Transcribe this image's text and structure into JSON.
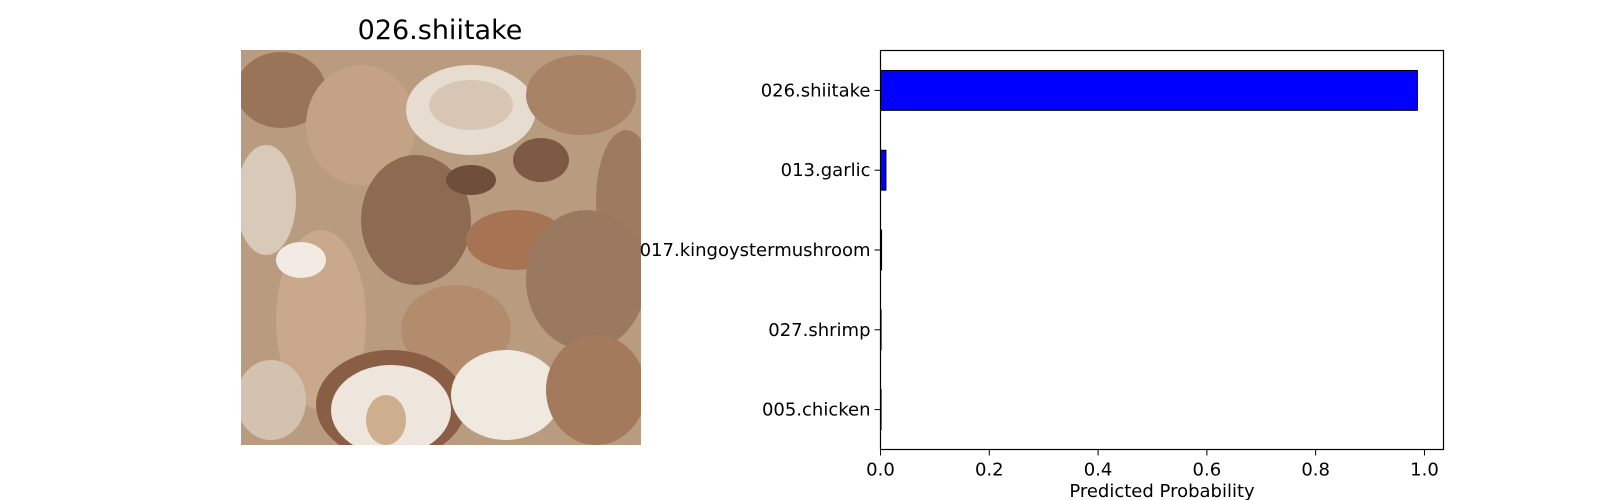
{
  "image_panel": {
    "title": "026.shiitake"
  },
  "chart_data": {
    "type": "bar",
    "orientation": "horizontal",
    "categories": [
      "026.shiitake",
      "013.garlic",
      "017.kingoystermushroom",
      "027.shrimp",
      "005.chicken"
    ],
    "values": [
      0.987,
      0.01,
      0.002,
      0.0005,
      0.0003
    ],
    "title": "",
    "xlabel": "Predicted Probability",
    "ylabel": "",
    "xlim": [
      0.0,
      1.035
    ],
    "xticks": [
      "0.0",
      "0.2",
      "0.4",
      "0.6",
      "0.8",
      "1.0"
    ],
    "grid": false,
    "bar_color": "#0000ff",
    "edge_color": "#000000"
  }
}
